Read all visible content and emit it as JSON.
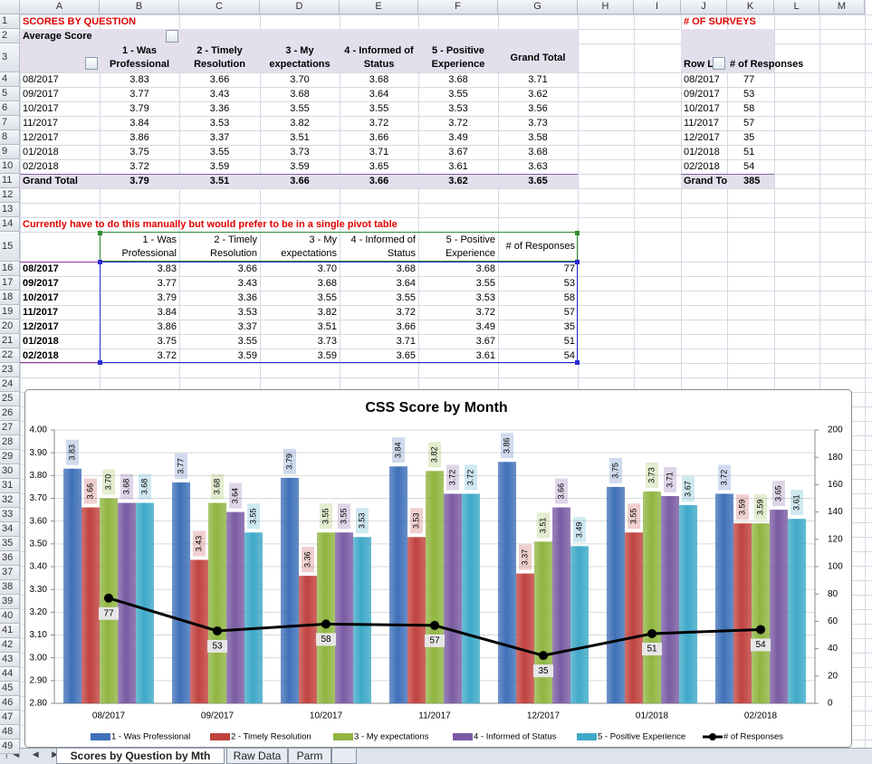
{
  "columns": [
    "A",
    "B",
    "C",
    "D",
    "E",
    "F",
    "G",
    "H",
    "I",
    "J",
    "K",
    "L",
    "M"
  ],
  "row_numbers": [
    1,
    2,
    3,
    4,
    5,
    6,
    7,
    8,
    9,
    10,
    11,
    12,
    13,
    14,
    15,
    16,
    17,
    18,
    19,
    20,
    21,
    22,
    23,
    24,
    25,
    26,
    27,
    28,
    29,
    30,
    31,
    32,
    33,
    34,
    35,
    36,
    37,
    38,
    39,
    40,
    41,
    42,
    43,
    44,
    45,
    46,
    47,
    48,
    49
  ],
  "pivot_scores": {
    "title": "SCORES BY QUESTION",
    "field": "Average Score",
    "headers": [
      "1 - Was Professional",
      "2 - Timely Resolution",
      "3 - My expectations",
      "4 - Informed of Status",
      "5 - Positive Experience",
      "Grand Total"
    ],
    "rows": [
      [
        "08/2017",
        "3.83",
        "3.66",
        "3.70",
        "3.68",
        "3.68",
        "3.71"
      ],
      [
        "09/2017",
        "3.77",
        "3.43",
        "3.68",
        "3.64",
        "3.55",
        "3.62"
      ],
      [
        "10/2017",
        "3.79",
        "3.36",
        "3.55",
        "3.55",
        "3.53",
        "3.56"
      ],
      [
        "11/2017",
        "3.84",
        "3.53",
        "3.82",
        "3.72",
        "3.72",
        "3.73"
      ],
      [
        "12/2017",
        "3.86",
        "3.37",
        "3.51",
        "3.66",
        "3.49",
        "3.58"
      ],
      [
        "01/2018",
        "3.75",
        "3.55",
        "3.73",
        "3.71",
        "3.67",
        "3.68"
      ],
      [
        "02/2018",
        "3.72",
        "3.59",
        "3.59",
        "3.65",
        "3.61",
        "3.63"
      ]
    ],
    "total": [
      "Grand Total",
      "3.79",
      "3.51",
      "3.66",
      "3.66",
      "3.62",
      "3.65"
    ]
  },
  "pivot_surveys": {
    "title": "# OF SURVEYS",
    "headers": [
      "Row L",
      "# of Responses"
    ],
    "rows": [
      [
        "08/2017",
        77
      ],
      [
        "09/2017",
        53
      ],
      [
        "10/2017",
        58
      ],
      [
        "11/2017",
        57
      ],
      [
        "12/2017",
        35
      ],
      [
        "01/2018",
        51
      ],
      [
        "02/2018",
        54
      ]
    ],
    "total": [
      "Grand Tot",
      385
    ]
  },
  "manual_table": {
    "note": "Currently have to do this manually but would prefer to be in a single pivot table",
    "headers": [
      "1 - Was Professional",
      "2 - Timely Resolution",
      "3 - My expectations",
      "4 - Informed of Status",
      "5 - Positive Experience",
      "# of Responses"
    ],
    "rows": [
      [
        "08/2017",
        "3.83",
        "3.66",
        "3.70",
        "3.68",
        "3.68",
        77
      ],
      [
        "09/2017",
        "3.77",
        "3.43",
        "3.68",
        "3.64",
        "3.55",
        53
      ],
      [
        "10/2017",
        "3.79",
        "3.36",
        "3.55",
        "3.55",
        "3.53",
        58
      ],
      [
        "11/2017",
        "3.84",
        "3.53",
        "3.82",
        "3.72",
        "3.72",
        57
      ],
      [
        "12/2017",
        "3.86",
        "3.37",
        "3.51",
        "3.66",
        "3.49",
        35
      ],
      [
        "01/2018",
        "3.75",
        "3.55",
        "3.73",
        "3.71",
        "3.67",
        51
      ],
      [
        "02/2018",
        "3.72",
        "3.59",
        "3.59",
        "3.65",
        "3.61",
        54
      ]
    ]
  },
  "chart_data": {
    "type": "bar",
    "title": "CSS Score by Month",
    "categories": [
      "08/2017",
      "09/2017",
      "10/2017",
      "11/2017",
      "12/2017",
      "01/2018",
      "02/2018"
    ],
    "series": [
      {
        "name": "1 - Was Professional",
        "color": "#3f70b8",
        "values": [
          3.83,
          3.77,
          3.79,
          3.84,
          3.86,
          3.75,
          3.72
        ],
        "value_labels": [
          "3.83",
          "3.77",
          "3.79",
          "3.84",
          "3.86",
          "3.75",
          "3.72"
        ]
      },
      {
        "name": "2 - Timely Resolution",
        "color": "#c0423e",
        "values": [
          3.66,
          3.43,
          3.36,
          3.53,
          3.37,
          3.55,
          3.59
        ],
        "value_labels": [
          "3.66",
          "3.43",
          "3.36",
          "3.53",
          "3.37",
          "3.55",
          "3.59"
        ]
      },
      {
        "name": "3 - My expectations",
        "color": "#8fb540",
        "values": [
          3.7,
          3.68,
          3.55,
          3.82,
          3.51,
          3.73,
          3.59
        ],
        "value_labels": [
          "3.70",
          "3.68",
          "3.55",
          "3.82",
          "3.51",
          "3.73",
          "3.59"
        ]
      },
      {
        "name": "4 - Informed of Status",
        "color": "#7a5ba3",
        "values": [
          3.68,
          3.64,
          3.55,
          3.72,
          3.66,
          3.71,
          3.65
        ],
        "value_labels": [
          "3.68",
          "3.64",
          "3.55",
          "3.72",
          "3.66",
          "3.71",
          "3.65"
        ]
      },
      {
        "name": "5 - Positive Experience",
        "color": "#3ea9c8",
        "values": [
          3.68,
          3.55,
          3.53,
          3.72,
          3.49,
          3.67,
          3.61
        ],
        "value_labels": [
          "3.68",
          "3.55",
          "3.53",
          "3.72",
          "3.49",
          "3.67",
          "3.61"
        ]
      },
      {
        "name": "# of Responses",
        "color": "#000000",
        "type": "line",
        "axis": "y2",
        "values": [
          77,
          53,
          58,
          57,
          35,
          51,
          54
        ]
      }
    ],
    "ylim": [
      2.8,
      4.0
    ],
    "yticks": [
      {
        "value": 2.8,
        "label": "2.80"
      },
      {
        "value": 2.9,
        "label": "2.90"
      },
      {
        "value": 3.0,
        "label": "3.00"
      },
      {
        "value": 3.1,
        "label": "3.10"
      },
      {
        "value": 3.2,
        "label": "3.20"
      },
      {
        "value": 3.3,
        "label": "3.30"
      },
      {
        "value": 3.4,
        "label": "3.40"
      },
      {
        "value": 3.5,
        "label": "3.50"
      },
      {
        "value": 3.6,
        "label": "3.60"
      },
      {
        "value": 3.7,
        "label": "3.70"
      },
      {
        "value": 3.8,
        "label": "3.80"
      },
      {
        "value": 3.9,
        "label": "3.90"
      },
      {
        "value": 4.0,
        "label": "4.00"
      }
    ],
    "y2lim": [
      0,
      200
    ],
    "y2ticks": [
      0,
      20,
      40,
      60,
      80,
      100,
      120,
      140,
      160,
      180,
      200
    ],
    "grid": true,
    "legend": "bottom"
  },
  "sheet_tabs": [
    "Scores by Question by Mth",
    "Raw Data",
    "Parm"
  ]
}
